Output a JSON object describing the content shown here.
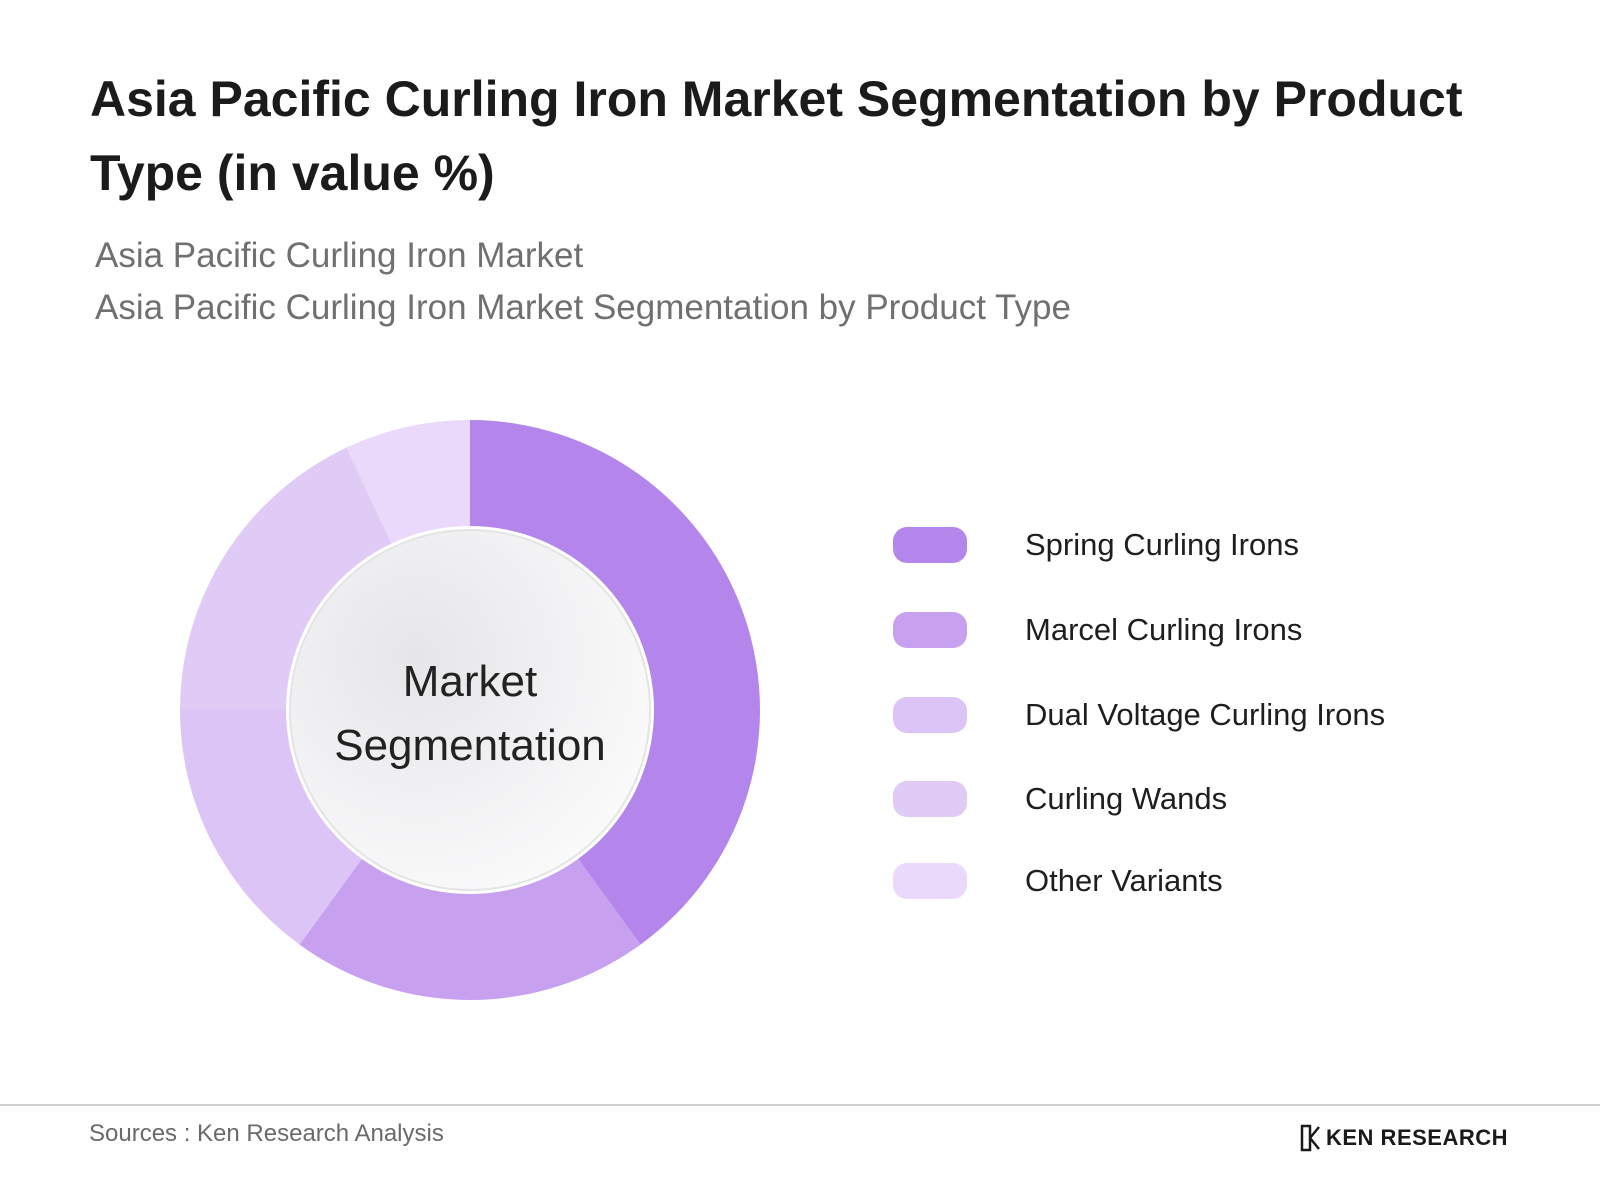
{
  "header": {
    "title": "Asia Pacific Curling Iron Market Segmentation by Product Type (in value %)",
    "subtitle_line1": "Asia Pacific Curling Iron Market",
    "subtitle_line2": "Asia Pacific Curling Iron Market Segmentation by Product Type"
  },
  "chart_data": {
    "type": "pie",
    "donut": true,
    "center_label_line1": "Market",
    "center_label_line2": "Segmentation",
    "categories": [
      "Spring Curling Irons",
      "Marcel Curling Irons",
      "Dual Voltage Curling Irons",
      "Curling Wands",
      "Other Variants"
    ],
    "values": [
      40,
      20,
      15,
      18,
      7
    ],
    "colors": [
      "#b486ec",
      "#c8a0f0",
      "#dcc5f6",
      "#e0cbf6",
      "#ead9fa"
    ],
    "legend_position": "right"
  },
  "footer": {
    "source": "Sources : Ken Research Analysis",
    "brand": "KEN RESEARCH"
  }
}
